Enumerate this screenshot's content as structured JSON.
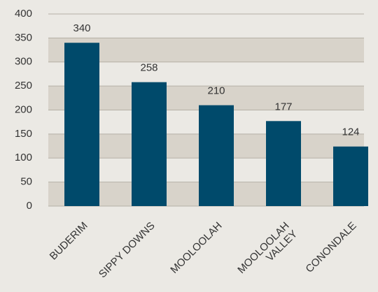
{
  "chart_data": {
    "type": "bar",
    "categories": [
      "BUDERIM",
      "SIPPY DOWNS",
      "MOOLOOLAH",
      "MOOLOOLAH\nVALLEY",
      "CONONDALE"
    ],
    "values": [
      340,
      258,
      210,
      177,
      124
    ],
    "color": "#004a6b",
    "ylim": [
      0,
      400
    ],
    "yticks": [
      0,
      50,
      100,
      150,
      200,
      250,
      300,
      350,
      400
    ],
    "grid": true,
    "bands": true
  }
}
